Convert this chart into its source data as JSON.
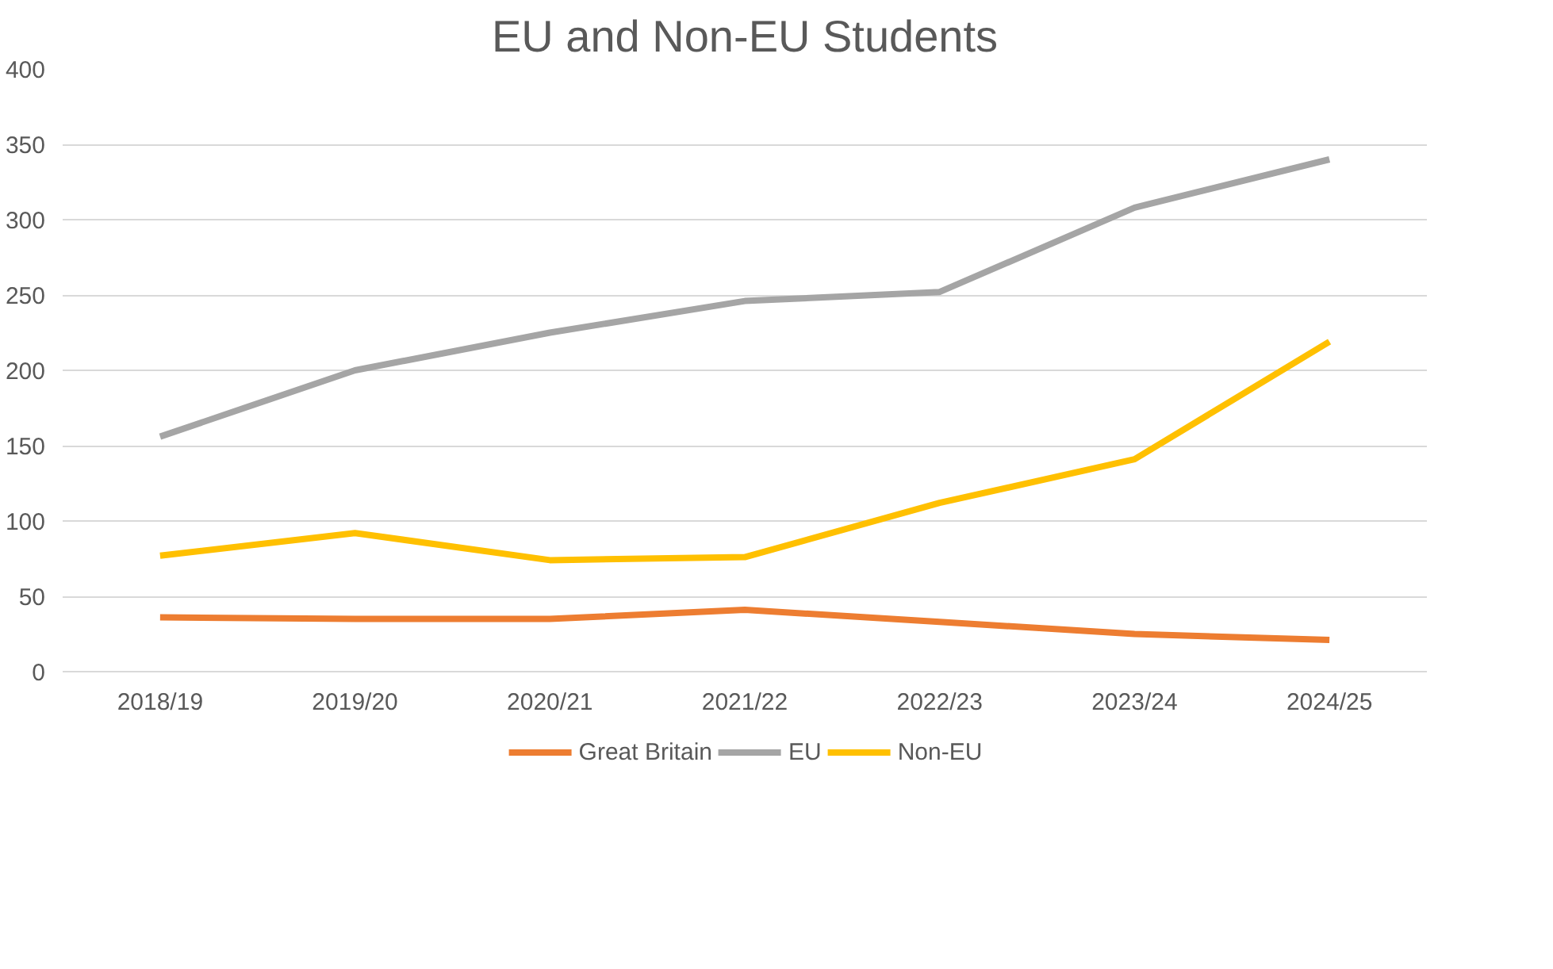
{
  "chart_data": {
    "type": "line",
    "title": "EU and Non-EU Students",
    "categories": [
      "2018/19",
      "2019/20",
      "2020/21",
      "2021/22",
      "2022/23",
      "2023/24",
      "2024/25"
    ],
    "series": [
      {
        "name": "Great Britain",
        "color": "#ed7d31",
        "values": [
          36,
          35,
          35,
          41,
          33,
          25,
          21
        ]
      },
      {
        "name": "EU",
        "color": "#a5a5a5",
        "values": [
          156,
          200,
          225,
          246,
          252,
          308,
          340
        ]
      },
      {
        "name": "Non-EU",
        "color": "#ffc000",
        "values": [
          77,
          92,
          74,
          76,
          112,
          141,
          219
        ]
      }
    ],
    "ylim": [
      0,
      400
    ],
    "yticks": [
      0,
      50,
      100,
      150,
      200,
      250,
      300,
      350,
      400
    ],
    "grid": "y",
    "legend": "bottom",
    "marker": "none",
    "line_style": "solid"
  }
}
